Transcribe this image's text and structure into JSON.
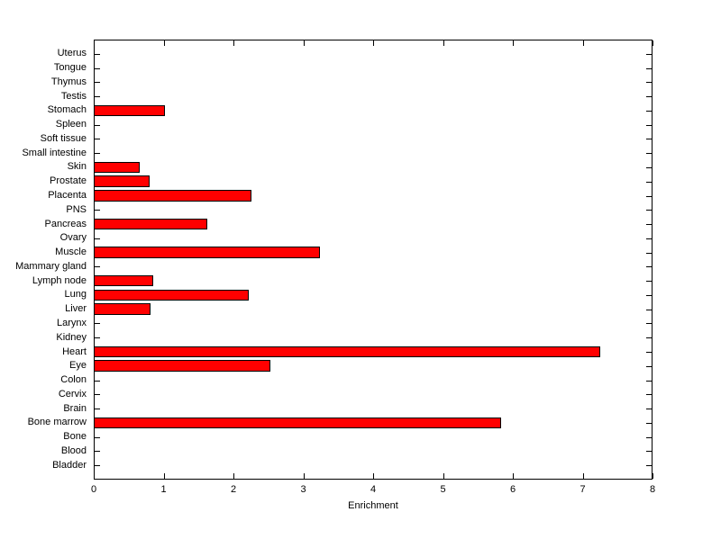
{
  "figure": {
    "background": "#ffffff"
  },
  "chart_data": {
    "type": "bar",
    "orientation": "horizontal",
    "title": "",
    "xlabel": "Enrichment",
    "ylabel": "",
    "xlim": [
      0,
      8
    ],
    "xticks": [
      0,
      1,
      2,
      3,
      4,
      5,
      6,
      7,
      8
    ],
    "grid": false,
    "legend": null,
    "bar_color": "#ff0000",
    "bar_edge_color": "#000000",
    "axis_color": "#000000",
    "categories": [
      "Uterus",
      "Tongue",
      "Thymus",
      "Testis",
      "Stomach",
      "Spleen",
      "Soft tissue",
      "Small intestine",
      "Skin",
      "Prostate",
      "Placenta",
      "PNS",
      "Pancreas",
      "Ovary",
      "Muscle",
      "Mammary gland",
      "Lymph node",
      "Lung",
      "Liver",
      "Larynx",
      "Kidney",
      "Heart",
      "Eye",
      "Colon",
      "Cervix",
      "Brain",
      "Bone marrow",
      "Bone",
      "Blood",
      "Bladder"
    ],
    "categories_order": "top-to-bottom",
    "values": [
      0,
      0,
      0,
      0,
      1.0,
      0,
      0,
      0,
      0.64,
      0.79,
      2.25,
      0,
      1.61,
      0,
      3.22,
      0,
      0.84,
      2.21,
      0.8,
      0,
      0,
      7.24,
      2.52,
      0,
      0,
      0,
      5.82,
      0,
      0,
      0
    ]
  }
}
